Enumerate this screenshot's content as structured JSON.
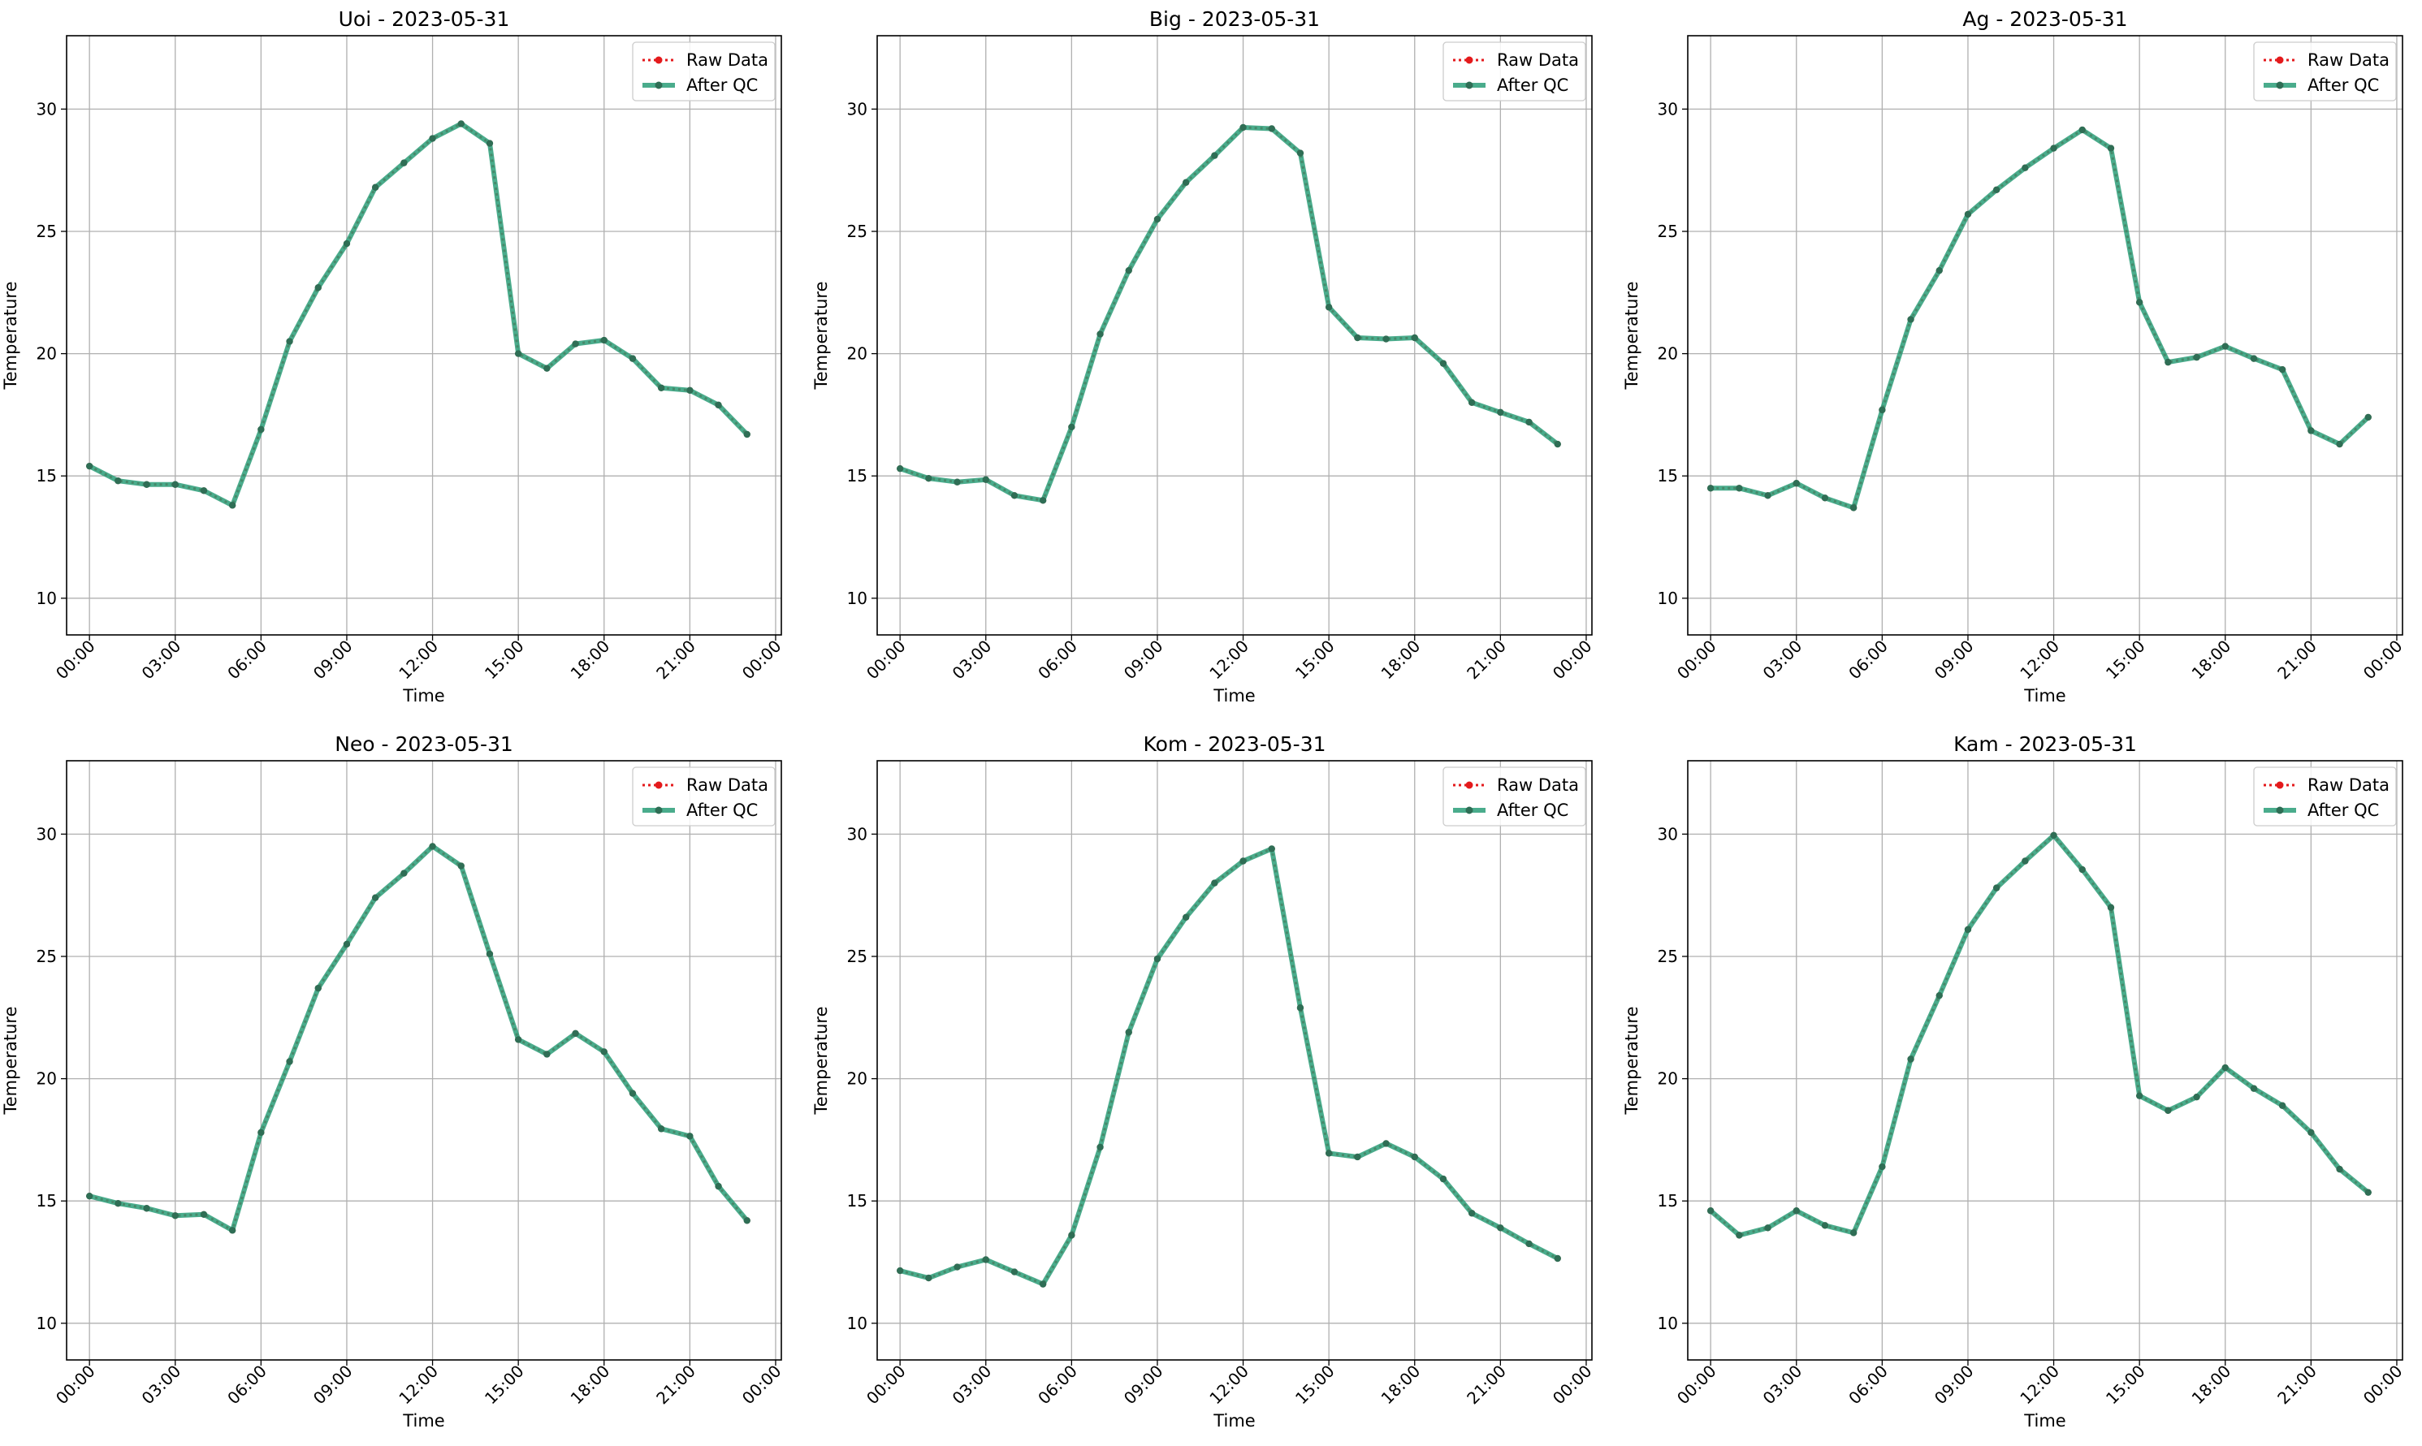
{
  "figure": {
    "colors": {
      "raw": "#e41a1c",
      "qc": "#2a9d78",
      "qc_markers": "#2f6e55",
      "grid": "#b0b0b0"
    }
  },
  "chart_data": [
    {
      "type": "line",
      "title": "Uoi - 2023-05-31",
      "xlabel": "Time",
      "ylabel": "Temperature",
      "ylim": [
        8.5,
        33
      ],
      "xlim": [
        -0.8,
        24.2
      ],
      "yticks": [
        10,
        15,
        20,
        25,
        30
      ],
      "xtick_hours": [
        0,
        3,
        6,
        9,
        12,
        15,
        18,
        21,
        24
      ],
      "xtick_labels": [
        "00:00",
        "03:00",
        "06:00",
        "09:00",
        "12:00",
        "15:00",
        "18:00",
        "21:00",
        "00:00"
      ],
      "grid": true,
      "legend": "upper right",
      "x": [
        "00:00",
        "01:00",
        "02:00",
        "03:00",
        "04:00",
        "05:00",
        "06:00",
        "07:00",
        "08:00",
        "09:00",
        "10:00",
        "11:00",
        "12:00",
        "13:00",
        "14:00",
        "15:00",
        "16:00",
        "17:00",
        "18:00",
        "19:00",
        "20:00",
        "21:00",
        "22:00",
        "23:00"
      ],
      "series": [
        {
          "name": "Raw Data",
          "values": [
            15.4,
            14.8,
            14.65,
            14.65,
            14.4,
            13.8,
            16.9,
            20.5,
            22.7,
            24.5,
            26.8,
            27.8,
            28.8,
            29.4,
            28.6,
            20.0,
            19.4,
            20.4,
            20.55,
            19.8,
            18.6,
            18.5,
            17.9,
            16.7
          ]
        },
        {
          "name": "After QC",
          "values": [
            15.4,
            14.8,
            14.65,
            14.65,
            14.4,
            13.8,
            16.9,
            20.5,
            22.7,
            24.5,
            26.8,
            27.8,
            28.8,
            29.4,
            28.6,
            20.0,
            19.4,
            20.4,
            20.55,
            19.8,
            18.6,
            18.5,
            17.9,
            16.7
          ]
        }
      ]
    },
    {
      "type": "line",
      "title": "Big - 2023-05-31",
      "xlabel": "Time",
      "ylabel": "Temperature",
      "ylim": [
        8.5,
        33
      ],
      "xlim": [
        -0.8,
        24.2
      ],
      "yticks": [
        10,
        15,
        20,
        25,
        30
      ],
      "xtick_hours": [
        0,
        3,
        6,
        9,
        12,
        15,
        18,
        21,
        24
      ],
      "xtick_labels": [
        "00:00",
        "03:00",
        "06:00",
        "09:00",
        "12:00",
        "15:00",
        "18:00",
        "21:00",
        "00:00"
      ],
      "grid": true,
      "legend": "upper right",
      "x": [
        "00:00",
        "01:00",
        "02:00",
        "03:00",
        "04:00",
        "05:00",
        "06:00",
        "07:00",
        "08:00",
        "09:00",
        "10:00",
        "11:00",
        "12:00",
        "13:00",
        "14:00",
        "15:00",
        "16:00",
        "17:00",
        "18:00",
        "19:00",
        "20:00",
        "21:00",
        "22:00",
        "23:00"
      ],
      "series": [
        {
          "name": "Raw Data",
          "values": [
            15.3,
            14.9,
            14.75,
            14.85,
            14.2,
            14.0,
            17.0,
            20.8,
            23.4,
            25.5,
            27.0,
            28.1,
            29.25,
            29.2,
            28.2,
            21.9,
            20.65,
            20.6,
            20.65,
            19.6,
            18.0,
            17.6,
            17.2,
            16.3
          ]
        },
        {
          "name": "After QC",
          "values": [
            15.3,
            14.9,
            14.75,
            14.85,
            14.2,
            14.0,
            17.0,
            20.8,
            23.4,
            25.5,
            27.0,
            28.1,
            29.25,
            29.2,
            28.2,
            21.9,
            20.65,
            20.6,
            20.65,
            19.6,
            18.0,
            17.6,
            17.2,
            16.3
          ]
        }
      ]
    },
    {
      "type": "line",
      "title": "Ag - 2023-05-31",
      "xlabel": "Time",
      "ylabel": "Temperature",
      "ylim": [
        8.5,
        33
      ],
      "xlim": [
        -0.8,
        24.2
      ],
      "yticks": [
        10,
        15,
        20,
        25,
        30
      ],
      "xtick_hours": [
        0,
        3,
        6,
        9,
        12,
        15,
        18,
        21,
        24
      ],
      "xtick_labels": [
        "00:00",
        "03:00",
        "06:00",
        "09:00",
        "12:00",
        "15:00",
        "18:00",
        "21:00",
        "00:00"
      ],
      "grid": true,
      "legend": "upper right",
      "x": [
        "00:00",
        "01:00",
        "02:00",
        "03:00",
        "04:00",
        "05:00",
        "06:00",
        "07:00",
        "08:00",
        "09:00",
        "10:00",
        "11:00",
        "12:00",
        "13:00",
        "14:00",
        "15:00",
        "16:00",
        "17:00",
        "18:00",
        "19:00",
        "20:00",
        "21:00",
        "22:00",
        "23:00"
      ],
      "series": [
        {
          "name": "Raw Data",
          "values": [
            14.5,
            14.5,
            14.2,
            14.7,
            14.1,
            13.7,
            17.7,
            21.4,
            23.4,
            25.7,
            26.7,
            27.6,
            28.4,
            29.15,
            28.4,
            22.1,
            19.65,
            19.85,
            20.3,
            19.8,
            19.35,
            16.85,
            16.3,
            17.4
          ]
        },
        {
          "name": "After QC",
          "values": [
            14.5,
            14.5,
            14.2,
            14.7,
            14.1,
            13.7,
            17.7,
            21.4,
            23.4,
            25.7,
            26.7,
            27.6,
            28.4,
            29.15,
            28.4,
            22.1,
            19.65,
            19.85,
            20.3,
            19.8,
            19.35,
            16.85,
            16.3,
            17.4
          ]
        }
      ]
    },
    {
      "type": "line",
      "title": "Neo - 2023-05-31",
      "xlabel": "Time",
      "ylabel": "Temperature",
      "ylim": [
        8.5,
        33
      ],
      "xlim": [
        -0.8,
        24.2
      ],
      "yticks": [
        10,
        15,
        20,
        25,
        30
      ],
      "xtick_hours": [
        0,
        3,
        6,
        9,
        12,
        15,
        18,
        21,
        24
      ],
      "xtick_labels": [
        "00:00",
        "03:00",
        "06:00",
        "09:00",
        "12:00",
        "15:00",
        "18:00",
        "21:00",
        "00:00"
      ],
      "grid": true,
      "legend": "upper right",
      "x": [
        "00:00",
        "01:00",
        "02:00",
        "03:00",
        "04:00",
        "05:00",
        "06:00",
        "07:00",
        "08:00",
        "09:00",
        "10:00",
        "11:00",
        "12:00",
        "13:00",
        "14:00",
        "15:00",
        "16:00",
        "17:00",
        "18:00",
        "19:00",
        "20:00",
        "21:00",
        "22:00",
        "23:00"
      ],
      "series": [
        {
          "name": "Raw Data",
          "values": [
            15.2,
            14.9,
            14.7,
            14.4,
            14.45,
            13.8,
            17.8,
            20.7,
            23.7,
            25.5,
            27.4,
            28.4,
            29.5,
            28.7,
            25.1,
            21.6,
            21.0,
            21.85,
            21.1,
            19.4,
            17.95,
            17.65,
            15.6,
            14.2
          ]
        },
        {
          "name": "After QC",
          "values": [
            15.2,
            14.9,
            14.7,
            14.4,
            14.45,
            13.8,
            17.8,
            20.7,
            23.7,
            25.5,
            27.4,
            28.4,
            29.5,
            28.7,
            25.1,
            21.6,
            21.0,
            21.85,
            21.1,
            19.4,
            17.95,
            17.65,
            15.6,
            14.2
          ]
        }
      ]
    },
    {
      "type": "line",
      "title": "Kom - 2023-05-31",
      "xlabel": "Time",
      "ylabel": "Temperature",
      "ylim": [
        8.5,
        33
      ],
      "xlim": [
        -0.8,
        24.2
      ],
      "yticks": [
        10,
        15,
        20,
        25,
        30
      ],
      "xtick_hours": [
        0,
        3,
        6,
        9,
        12,
        15,
        18,
        21,
        24
      ],
      "xtick_labels": [
        "00:00",
        "03:00",
        "06:00",
        "09:00",
        "12:00",
        "15:00",
        "18:00",
        "21:00",
        "00:00"
      ],
      "grid": true,
      "legend": "upper right",
      "x": [
        "00:00",
        "01:00",
        "02:00",
        "03:00",
        "04:00",
        "05:00",
        "06:00",
        "07:00",
        "08:00",
        "09:00",
        "10:00",
        "11:00",
        "12:00",
        "13:00",
        "14:00",
        "15:00",
        "16:00",
        "17:00",
        "18:00",
        "19:00",
        "20:00",
        "21:00",
        "22:00",
        "23:00"
      ],
      "series": [
        {
          "name": "Raw Data",
          "values": [
            12.15,
            11.85,
            12.3,
            12.6,
            12.1,
            11.6,
            13.6,
            17.2,
            21.9,
            24.9,
            26.6,
            28.0,
            28.9,
            29.4,
            22.9,
            16.95,
            16.8,
            17.35,
            16.8,
            15.9,
            14.5,
            13.9,
            13.25,
            12.65
          ]
        },
        {
          "name": "After QC",
          "values": [
            12.15,
            11.85,
            12.3,
            12.6,
            12.1,
            11.6,
            13.6,
            17.2,
            21.9,
            24.9,
            26.6,
            28.0,
            28.9,
            29.4,
            22.9,
            16.95,
            16.8,
            17.35,
            16.8,
            15.9,
            14.5,
            13.9,
            13.25,
            12.65
          ]
        }
      ]
    },
    {
      "type": "line",
      "title": "Kam - 2023-05-31",
      "xlabel": "Time",
      "ylabel": "Temperature",
      "ylim": [
        8.5,
        33
      ],
      "xlim": [
        -0.8,
        24.2
      ],
      "yticks": [
        10,
        15,
        20,
        25,
        30
      ],
      "xtick_hours": [
        0,
        3,
        6,
        9,
        12,
        15,
        18,
        21,
        24
      ],
      "xtick_labels": [
        "00:00",
        "03:00",
        "06:00",
        "09:00",
        "12:00",
        "15:00",
        "18:00",
        "21:00",
        "00:00"
      ],
      "grid": true,
      "legend": "upper right",
      "x": [
        "00:00",
        "01:00",
        "02:00",
        "03:00",
        "04:00",
        "05:00",
        "06:00",
        "07:00",
        "08:00",
        "09:00",
        "10:00",
        "11:00",
        "12:00",
        "13:00",
        "14:00",
        "15:00",
        "16:00",
        "17:00",
        "18:00",
        "19:00",
        "20:00",
        "21:00",
        "22:00",
        "23:00"
      ],
      "series": [
        {
          "name": "Raw Data",
          "values": [
            14.6,
            13.6,
            13.9,
            14.6,
            14.0,
            13.7,
            16.4,
            20.8,
            23.4,
            26.1,
            27.8,
            28.9,
            29.95,
            28.55,
            27.0,
            19.3,
            18.7,
            19.25,
            20.45,
            19.6,
            18.9,
            17.8,
            16.3,
            15.35
          ]
        },
        {
          "name": "After QC",
          "values": [
            14.6,
            13.6,
            13.9,
            14.6,
            14.0,
            13.7,
            16.4,
            20.8,
            23.4,
            26.1,
            27.8,
            28.9,
            29.95,
            28.55,
            27.0,
            19.3,
            18.7,
            19.25,
            20.45,
            19.6,
            18.9,
            17.8,
            16.3,
            15.35
          ]
        }
      ]
    }
  ]
}
